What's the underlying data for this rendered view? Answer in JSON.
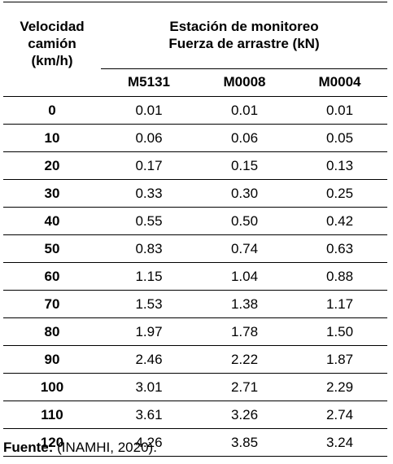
{
  "table": {
    "header": {
      "speed_label": [
        "Velocidad",
        "camión",
        "(km/h)"
      ],
      "group_label": [
        "Estación de monitoreo",
        "Fuerza de arrastre (kN)"
      ],
      "stations": [
        "M5131",
        "M0008",
        "M0004"
      ]
    },
    "rows": [
      {
        "speed": "0",
        "values": [
          "0.01",
          "0.01",
          "0.01"
        ]
      },
      {
        "speed": "10",
        "values": [
          "0.06",
          "0.06",
          "0.05"
        ]
      },
      {
        "speed": "20",
        "values": [
          "0.17",
          "0.15",
          "0.13"
        ]
      },
      {
        "speed": "30",
        "values": [
          "0.33",
          "0.30",
          "0.25"
        ]
      },
      {
        "speed": "40",
        "values": [
          "0.55",
          "0.50",
          "0.42"
        ]
      },
      {
        "speed": "50",
        "values": [
          "0.83",
          "0.74",
          "0.63"
        ]
      },
      {
        "speed": "60",
        "values": [
          "1.15",
          "1.04",
          "0.88"
        ]
      },
      {
        "speed": "70",
        "values": [
          "1.53",
          "1.38",
          "1.17"
        ]
      },
      {
        "speed": "80",
        "values": [
          "1.97",
          "1.78",
          "1.50"
        ]
      },
      {
        "speed": "90",
        "values": [
          "2.46",
          "2.22",
          "1.87"
        ]
      },
      {
        "speed": "100",
        "values": [
          "3.01",
          "2.71",
          "2.29"
        ]
      },
      {
        "speed": "110",
        "values": [
          "3.61",
          "3.26",
          "2.74"
        ]
      },
      {
        "speed": "120",
        "values": [
          "4.26",
          "3.85",
          "3.24"
        ]
      }
    ]
  },
  "source": {
    "label": "Fuente:",
    "text": " (INAMHI, 2020)."
  }
}
